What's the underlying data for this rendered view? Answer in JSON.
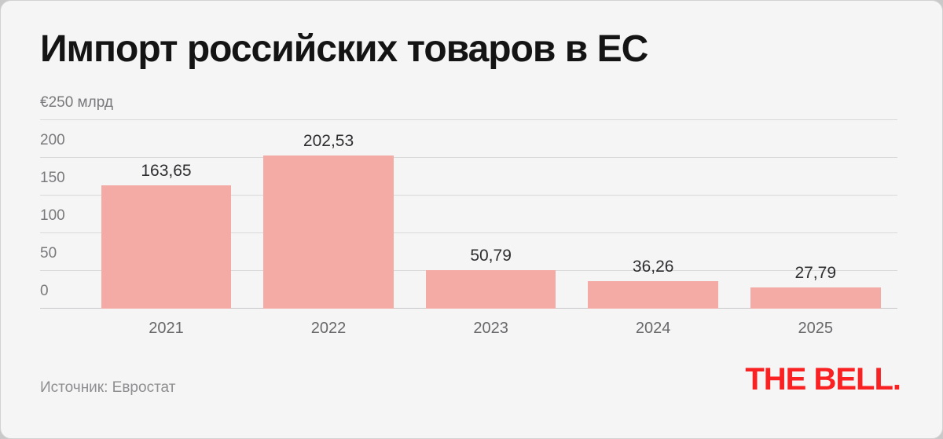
{
  "header": {
    "title": "Импорт российских товаров в ЕС"
  },
  "chart_data": {
    "type": "bar",
    "title": "Импорт российских товаров в ЕС",
    "categories": [
      "2021",
      "2022",
      "2023",
      "2024",
      "2025"
    ],
    "values": [
      163.65,
      202.53,
      50.79,
      36.26,
      27.79
    ],
    "value_labels": [
      "163,65",
      "202,53",
      "50,79",
      "36,26",
      "27,79"
    ],
    "y_axis_unit_label": "€250 млрд",
    "y_ticks": [
      {
        "value": 0,
        "label": "0"
      },
      {
        "value": 50,
        "label": "50"
      },
      {
        "value": 100,
        "label": "100"
      },
      {
        "value": 150,
        "label": "150"
      },
      {
        "value": 200,
        "label": "200"
      },
      {
        "value": 250,
        "label": "€250 млрд"
      }
    ],
    "ylim": [
      0,
      250
    ],
    "grid": true,
    "legend": "none",
    "bar_color": "#f5aba5",
    "background_color": "#f5f5f6",
    "source": "Источник: Евростат"
  },
  "footer": {
    "source": "Источник: Евростат",
    "logo": "THE BELL.",
    "logo_color": "#f92121"
  }
}
